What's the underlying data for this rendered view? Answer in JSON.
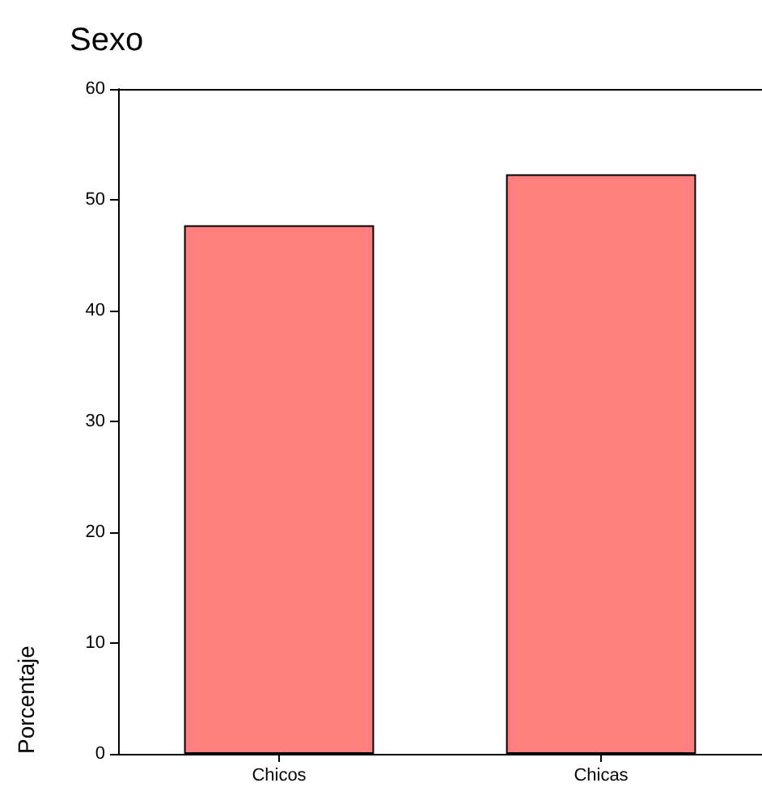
{
  "chart_data": {
    "type": "bar",
    "title": "Sexo",
    "ylabel": "Porcentaje",
    "categories": [
      "Chicos",
      "Chicas"
    ],
    "values": [
      47.7,
      52.3
    ],
    "color": "#ff7f7f",
    "ylim": [
      0,
      60
    ],
    "yticks": [
      0,
      10,
      20,
      30,
      40,
      50,
      60
    ],
    "grid": false
  }
}
